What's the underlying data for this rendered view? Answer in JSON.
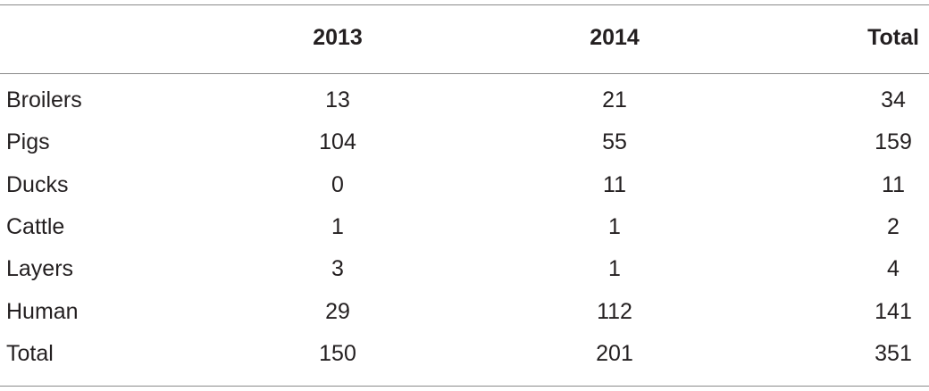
{
  "table": {
    "columns": [
      "2013",
      "2014",
      "Total"
    ],
    "rows": [
      [
        "Broilers",
        13,
        21,
        34
      ],
      [
        "Pigs",
        104,
        55,
        159
      ],
      [
        "Ducks",
        0,
        11,
        11
      ],
      [
        "Cattle",
        1,
        1,
        2
      ],
      [
        "Layers",
        3,
        1,
        4
      ],
      [
        "Human",
        29,
        112,
        141
      ],
      [
        "Total",
        150,
        201,
        351
      ]
    ]
  }
}
